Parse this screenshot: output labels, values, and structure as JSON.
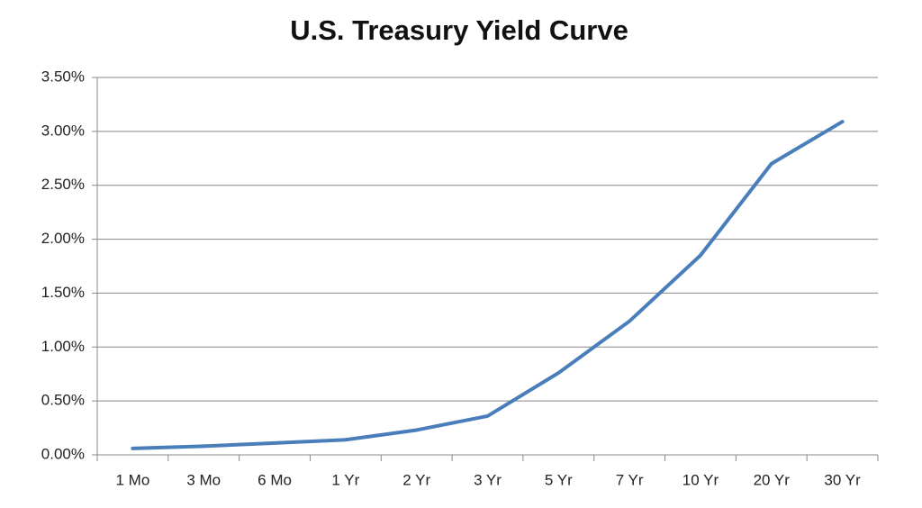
{
  "chart_data": {
    "type": "line",
    "title": "U.S. Treasury Yield Curve",
    "categories": [
      "1 Mo",
      "3 Mo",
      "6 Mo",
      "1 Yr",
      "2 Yr",
      "3 Yr",
      "5 Yr",
      "7 Yr",
      "10 Yr",
      "20 Yr",
      "30 Yr"
    ],
    "values": [
      0.06,
      0.08,
      0.11,
      0.14,
      0.23,
      0.36,
      0.76,
      1.24,
      1.85,
      2.7,
      3.09
    ],
    "color": "#4a7ebb",
    "ylim": [
      0,
      3.5
    ],
    "yticks": [
      {
        "value": 0,
        "label": "0.00%"
      },
      {
        "value": 0.5,
        "label": "0.50%"
      },
      {
        "value": 1,
        "label": "1.00%"
      },
      {
        "value": 1.5,
        "label": "1.50%"
      },
      {
        "value": 2,
        "label": "2.00%"
      },
      {
        "value": 2.5,
        "label": "2.50%"
      },
      {
        "value": 3,
        "label": "3.00%"
      },
      {
        "value": 3.5,
        "label": "3.50%"
      }
    ],
    "grid": true
  }
}
